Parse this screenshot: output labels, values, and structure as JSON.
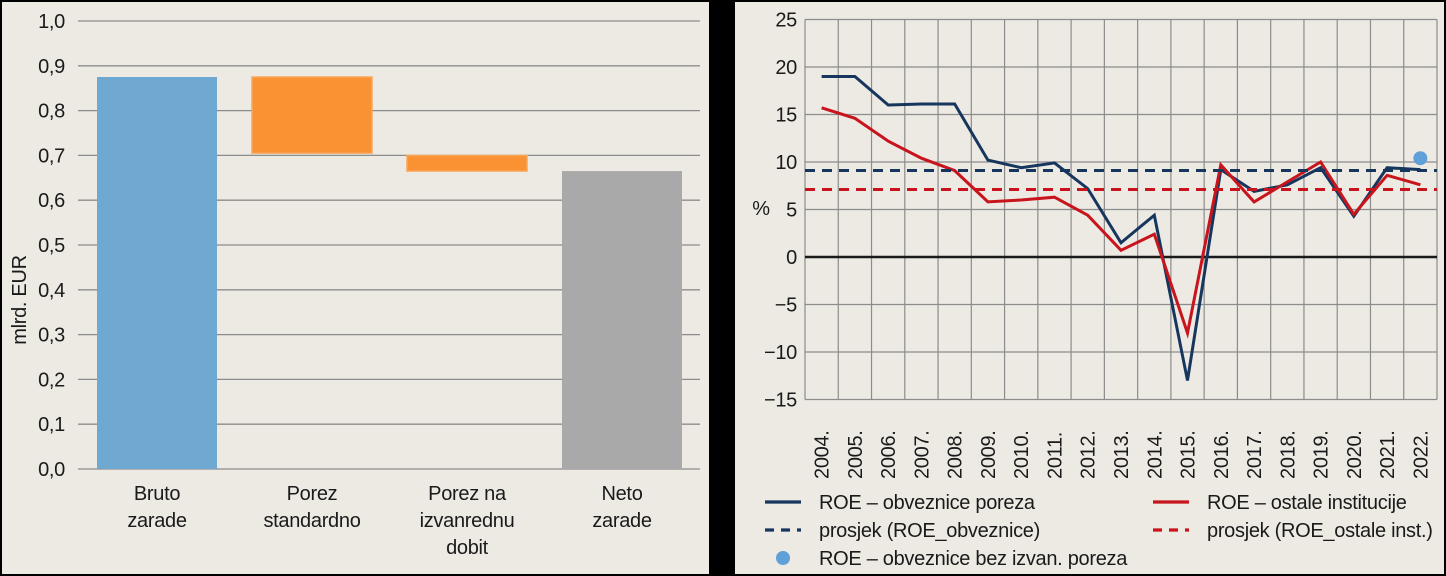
{
  "style": {
    "background": "#EDEAE4",
    "frame": "#000000",
    "grid_color": "#8C8C8C",
    "zero_line_color": "#1A1A1A",
    "text_color": "#1A1A1A",
    "navy": "#17365D",
    "red": "#C8141C",
    "dot_blue": "#5FA0D8",
    "bar_blue": "#6FA9D2",
    "bar_orange": "#FA9132",
    "bar_orange_border": "#F7A85C",
    "bar_gray": "#A9A9A9"
  },
  "chart_data": [
    {
      "type": "bar",
      "variant": "waterfall",
      "ylabel": "mlrd. EUR",
      "ylim": [
        0.0,
        1.0
      ],
      "ytick_step": 0.1,
      "grid": true,
      "yticks": [
        {
          "value": 0.0,
          "label": "0,0"
        },
        {
          "value": 0.1,
          "label": "0,1"
        },
        {
          "value": 0.2,
          "label": "0,2"
        },
        {
          "value": 0.3,
          "label": "0,3"
        },
        {
          "value": 0.4,
          "label": "0,4"
        },
        {
          "value": 0.5,
          "label": "0,5"
        },
        {
          "value": 0.6,
          "label": "0,6"
        },
        {
          "value": 0.7,
          "label": "0,7"
        },
        {
          "value": 0.8,
          "label": "0,8"
        },
        {
          "value": 0.9,
          "label": "0,9"
        },
        {
          "value": 1.0,
          "label": "1,0"
        }
      ],
      "bars": [
        {
          "category": "Bruto zarade",
          "label_lines": [
            "Bruto",
            "zarade"
          ],
          "from": 0.0,
          "to": 0.875,
          "color_key": "bar_blue"
        },
        {
          "category": "Porez standardno",
          "label_lines": [
            "Porez",
            "standardno"
          ],
          "from": 0.705,
          "to": 0.875,
          "color_key": "bar_orange"
        },
        {
          "category": "Porez na izvanrednu dobit",
          "label_lines": [
            "Porez na",
            "izvanrednu",
            "dobit"
          ],
          "from": 0.665,
          "to": 0.7,
          "color_key": "bar_orange"
        },
        {
          "category": "Neto zarade",
          "label_lines": [
            "Neto",
            "zarade"
          ],
          "from": 0.0,
          "to": 0.665,
          "color_key": "bar_gray"
        }
      ]
    },
    {
      "type": "line",
      "ylabel": "%",
      "ylim": [
        -15,
        25
      ],
      "ytick_step": 5,
      "grid": true,
      "yticks": [
        {
          "value": 25,
          "label": "25"
        },
        {
          "value": 20,
          "label": "20"
        },
        {
          "value": 15,
          "label": "15"
        },
        {
          "value": 10,
          "label": "10"
        },
        {
          "value": 5,
          "label": "5"
        },
        {
          "value": 0,
          "label": "0"
        },
        {
          "value": -5,
          "label": "−5"
        },
        {
          "value": -10,
          "label": "−10"
        },
        {
          "value": -15,
          "label": "−15"
        }
      ],
      "x_categories": [
        "2004.",
        "2005.",
        "2006.",
        "2007.",
        "2008.",
        "2009.",
        "2010.",
        "2011.",
        "2012.",
        "2013.",
        "2014.",
        "2015.",
        "2016.",
        "2017.",
        "2018.",
        "2019.",
        "2020.",
        "2021.",
        "2022."
      ],
      "series": [
        {
          "name": "ROE – obveznice poreza",
          "style": "solid",
          "color_key": "navy",
          "values": [
            19.0,
            19.0,
            16.0,
            16.1,
            16.1,
            10.2,
            9.4,
            9.9,
            7.2,
            1.5,
            4.4,
            -13.0,
            9.2,
            6.9,
            7.6,
            9.4,
            4.3,
            9.4,
            9.2
          ]
        },
        {
          "name": "ROE – ostale institucije",
          "style": "solid",
          "color_key": "red",
          "values": [
            15.7,
            14.6,
            12.2,
            10.4,
            9.1,
            5.8,
            6.0,
            6.3,
            4.4,
            0.7,
            2.4,
            -8.0,
            9.7,
            5.8,
            7.9,
            10.0,
            4.5,
            8.6,
            7.6
          ]
        },
        {
          "name": "prosjek (ROE_obveznice)",
          "style": "dashed",
          "color_key": "navy",
          "value": 9.1
        },
        {
          "name": "prosjek (ROE_ostale inst.)",
          "style": "dashed",
          "color_key": "red",
          "value": 7.1
        },
        {
          "name": "ROE – obveznice bez izvan. poreza",
          "style": "dot",
          "color_key": "dot_blue",
          "x": "2022.",
          "value": 10.4
        }
      ],
      "legend": {
        "position": "bottom",
        "columns": [
          [
            0,
            2,
            4
          ],
          [
            1,
            3
          ]
        ]
      }
    }
  ]
}
